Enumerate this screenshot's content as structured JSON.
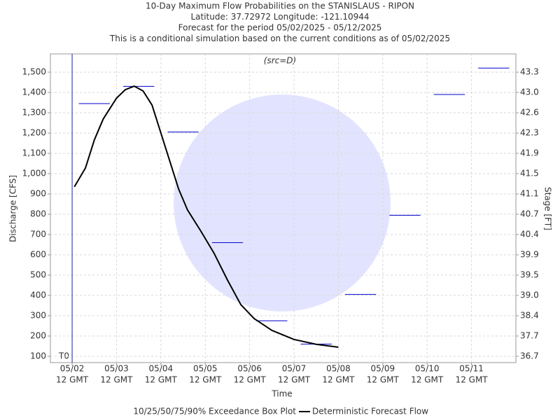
{
  "chart_data": {
    "type": "line",
    "title_lines": [
      "10-Day Maximum Flow Probabilities on the STANISLAUS - RIPON",
      "Latitude: 37.72972 Longitude: -121.10944",
      "Forecast for the period 05/02/2025 - 05/12/2025",
      "This is a conditional simulation based on the current conditions as of 05/02/2025"
    ],
    "subtitle": "(src=D)",
    "x_label": "Time",
    "y_label": "Discharge [CFS]",
    "y2_label": "Stage [FT]",
    "t0_label": "T0",
    "t0_x": 0,
    "xlim": [
      -0.49,
      10.0
    ],
    "xticks": [
      {
        "value": 0,
        "label": "05/02"
      },
      {
        "value": 1,
        "label": "05/03"
      },
      {
        "value": 2,
        "label": "05/04"
      },
      {
        "value": 3,
        "label": "05/05"
      },
      {
        "value": 4,
        "label": "05/06"
      },
      {
        "value": 5,
        "label": "05/07"
      },
      {
        "value": 6,
        "label": "05/08"
      },
      {
        "value": 7,
        "label": "05/09"
      },
      {
        "value": 8,
        "label": "05/10"
      },
      {
        "value": 9,
        "label": "05/11"
      }
    ],
    "xtick_sublabel": "12 GMT",
    "ylim": [
      69,
      1590
    ],
    "yticks": [
      100,
      200,
      300,
      400,
      500,
      600,
      700,
      800,
      900,
      {
        "value": 1000,
        "label": "1,000"
      },
      {
        "value": 1100,
        "label": "1,100"
      },
      {
        "value": 1200,
        "label": "1,200"
      },
      {
        "value": 1300,
        "label": "1,300"
      },
      {
        "value": 1400,
        "label": "1,400"
      },
      {
        "value": 1500,
        "label": "1,500"
      }
    ],
    "y2ticks": [
      36.7,
      37.7,
      38.4,
      39.0,
      39.5,
      39.9,
      40.4,
      40.7,
      41.1,
      41.5,
      41.9,
      42.3,
      42.6,
      43.0,
      43.3
    ],
    "grid": true,
    "box_plot": {
      "name": "10/25/50/75/90% Exceedance Box Plot",
      "color": "#0000cc",
      "x": [
        0.5,
        1.5,
        2.5,
        3.5,
        4.5,
        5.5,
        6.5,
        7.5,
        8.5,
        9.5
      ],
      "values": [
        1345,
        1430,
        1205,
        660,
        275,
        160,
        405,
        795,
        1390,
        1520
      ]
    },
    "series": [
      {
        "name": "Deterministic Forecast Flow",
        "color": "#000000",
        "x": [
          0.05,
          0.3,
          0.5,
          0.7,
          1.0,
          1.2,
          1.4,
          1.6,
          1.8,
          2.0,
          2.2,
          2.4,
          2.6,
          2.9,
          3.2,
          3.5,
          3.8,
          4.1,
          4.5,
          5.0,
          5.5,
          6.0
        ],
        "values": [
          935,
          1028,
          1166,
          1269,
          1372,
          1414,
          1431,
          1407,
          1338,
          1200,
          1062,
          924,
          821,
          717,
          607,
          476,
          355,
          286,
          228,
          183,
          159,
          145
        ]
      }
    ]
  }
}
